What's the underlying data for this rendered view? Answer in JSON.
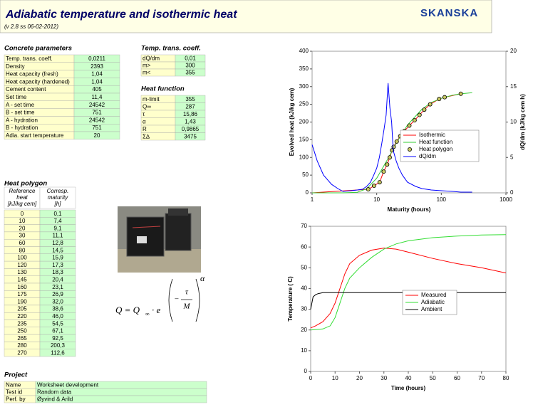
{
  "header": {
    "title": "Adiabatic temperature and isothermic heat",
    "version": "(v 2.8 ss 06-02-2012)",
    "logo": "SKANSKA"
  },
  "concrete_parameters": {
    "title": "Concrete parameters",
    "rows": [
      [
        "Temp. trans. coeff.",
        "0,0211"
      ],
      [
        "Density",
        "2393"
      ],
      [
        "Heat capacity (fresh)",
        "1,04"
      ],
      [
        "Heat capacity (hardened)",
        "1,04"
      ],
      [
        "Cement content",
        "405"
      ],
      [
        "Set time",
        "11,4"
      ],
      [
        "A - set time",
        "24542"
      ],
      [
        "B - set time",
        "751"
      ],
      [
        "A - hydration",
        "24542"
      ],
      [
        "B - hydration",
        "751"
      ],
      [
        "Adia. start temperature",
        "20"
      ]
    ]
  },
  "temp_trans_coeff": {
    "title": "Temp. trans. coeff.",
    "rows": [
      [
        "dQ/dm",
        "0,01"
      ],
      [
        "m>",
        "300"
      ],
      [
        "m<",
        "355"
      ]
    ]
  },
  "heat_function": {
    "title": "Heat function",
    "rows": [
      [
        "m-limit",
        "355"
      ],
      [
        "Q∞",
        "287"
      ],
      [
        "τ",
        "15,86"
      ],
      [
        "α",
        "1,43"
      ],
      [
        "R",
        "0,9865"
      ],
      [
        "Σ∆",
        "3475"
      ]
    ]
  },
  "heat_polygon": {
    "title": "Heat polygon",
    "columns": [
      [
        "Reference",
        "heat",
        "[kJ/kg cem]"
      ],
      [
        "Corresp.",
        "maturity",
        "[h]"
      ]
    ],
    "rows": [
      [
        "0",
        "0,1"
      ],
      [
        "10",
        "7,4"
      ],
      [
        "20",
        "9,1"
      ],
      [
        "30",
        "11,1"
      ],
      [
        "60",
        "12,8"
      ],
      [
        "80",
        "14,5"
      ],
      [
        "100",
        "15,9"
      ],
      [
        "120",
        "17,3"
      ],
      [
        "130",
        "18,3"
      ],
      [
        "145",
        "20,4"
      ],
      [
        "160",
        "23,1"
      ],
      [
        "175",
        "26,9"
      ],
      [
        "190",
        "32,0"
      ],
      [
        "205",
        "38,6"
      ],
      [
        "220",
        "46,0"
      ],
      [
        "235",
        "54,5"
      ],
      [
        "250",
        "67,1"
      ],
      [
        "265",
        "92,5"
      ],
      [
        "280",
        "200,3"
      ],
      [
        "270",
        "112,6"
      ]
    ]
  },
  "project": {
    "title": "Project",
    "rows": [
      [
        "Name",
        "Worksheet development"
      ],
      [
        "Test id",
        "Random data"
      ],
      [
        "Perf. by",
        "Øyvind & Arild"
      ]
    ]
  },
  "formula": {
    "left": "Q = Q",
    "sub": "∞",
    "mid": "· e",
    "minus": "−",
    "num": "τ",
    "den": "M",
    "power": "α"
  },
  "chart_data": [
    {
      "type": "line",
      "x_scale": "log",
      "xlabel": "Maturity (hours)",
      "ylabel": "Evolved heat (kJ/kg cem)",
      "y2label": "dQ/dm (kJ/kg cem h)",
      "xlim": [
        1,
        1000
      ],
      "xticks": [
        1,
        10,
        100,
        1000
      ],
      "ylim": [
        0,
        400
      ],
      "yticks": [
        0,
        50,
        100,
        150,
        200,
        250,
        300,
        350,
        400
      ],
      "y2lim": [
        0,
        20
      ],
      "y2ticks": [
        0,
        5,
        10,
        15,
        20
      ],
      "legend": "right",
      "series": [
        {
          "name": "Isothermic",
          "color": "#ff0000",
          "x": [
            1,
            7.4,
            9.1,
            11.1,
            12.8,
            14.5,
            15.9,
            17.3,
            18.3,
            20.4,
            23.1,
            26.9,
            32,
            38.6,
            46,
            54.5,
            67.1,
            92.5,
            112.6,
            200.3
          ],
          "values": [
            0,
            10,
            20,
            30,
            60,
            80,
            100,
            120,
            130,
            145,
            160,
            175,
            190,
            205,
            220,
            235,
            250,
            265,
            270,
            280
          ]
        },
        {
          "name": "Heat function",
          "color": "#33cc33",
          "x": [
            1,
            2,
            3,
            5,
            7,
            10,
            15,
            20,
            30,
            50,
            70,
            100,
            150,
            200,
            300
          ],
          "values": [
            0,
            0,
            0,
            1.6,
            11.5,
            41.4,
            97,
            140,
            192,
            236,
            255,
            267,
            276,
            279.5,
            283
          ]
        },
        {
          "name": "Heat polygon",
          "color": "#000000",
          "marker": "circle",
          "marker_fill": "#c8c860",
          "line": false,
          "x": [
            7.4,
            9.1,
            11.1,
            12.8,
            14.5,
            15.9,
            17.3,
            18.3,
            20.4,
            23.1,
            26.9,
            32,
            38.6,
            46,
            54.5,
            67.1,
            92.5,
            112.6,
            200.3
          ],
          "values": [
            10,
            20,
            30,
            60,
            80,
            100,
            120,
            130,
            145,
            160,
            175,
            190,
            205,
            220,
            235,
            250,
            265,
            270,
            280
          ]
        },
        {
          "name": "dQ/dm",
          "color": "#0000ff",
          "axis": "y2",
          "x": [
            1,
            1.2,
            1.5,
            2,
            2.5,
            3,
            4,
            5,
            6,
            7,
            8,
            9,
            10,
            11,
            12,
            13,
            14,
            15,
            16,
            17,
            18,
            20,
            22,
            25,
            30,
            40,
            50,
            70,
            100,
            150,
            200,
            300
          ],
          "values": [
            6.8,
            4.5,
            2.5,
            1.2,
            0.6,
            0.2,
            0.3,
            0.4,
            0.5,
            0.9,
            1.5,
            2.5,
            3.5,
            5,
            7,
            9,
            11,
            15.5,
            12,
            10,
            6,
            4.5,
            3.5,
            2.5,
            1.5,
            0.9,
            0.6,
            0.4,
            0.3,
            0.2,
            0.1,
            0.1
          ]
        }
      ]
    },
    {
      "type": "line",
      "xlabel": "Time (hours)",
      "ylabel": "Temperature ( C)",
      "xlim": [
        0,
        80
      ],
      "xticks": [
        0,
        10,
        20,
        30,
        40,
        50,
        60,
        70,
        80
      ],
      "ylim": [
        0,
        70
      ],
      "yticks": [
        0,
        10,
        20,
        30,
        40,
        50,
        60,
        70
      ],
      "legend": "right",
      "series": [
        {
          "name": "Measured",
          "color": "#ff0000",
          "x": [
            0,
            2,
            5,
            8,
            10,
            12,
            14,
            16,
            20,
            25,
            30,
            35,
            40,
            50,
            60,
            70,
            80
          ],
          "values": [
            21,
            22,
            24,
            28,
            33,
            40,
            47,
            52,
            56,
            58.5,
            59.5,
            59,
            57.5,
            54.5,
            52,
            50,
            47.5
          ]
        },
        {
          "name": "Adiabatic",
          "color": "#33dd33",
          "x": [
            0,
            5,
            8,
            10,
            12,
            14,
            16,
            20,
            25,
            30,
            35,
            40,
            50,
            60,
            70,
            80
          ],
          "values": [
            20,
            20.5,
            22,
            26,
            33,
            40,
            45,
            50,
            55,
            59,
            61.5,
            63,
            64.5,
            65.3,
            65.8,
            66
          ]
        },
        {
          "name": "Ambient",
          "color": "#000000",
          "x": [
            0,
            1,
            2,
            3,
            5,
            10,
            20,
            40,
            60,
            80
          ],
          "values": [
            30,
            36,
            37,
            37.5,
            38,
            38,
            38,
            38,
            38,
            38
          ]
        }
      ]
    }
  ]
}
